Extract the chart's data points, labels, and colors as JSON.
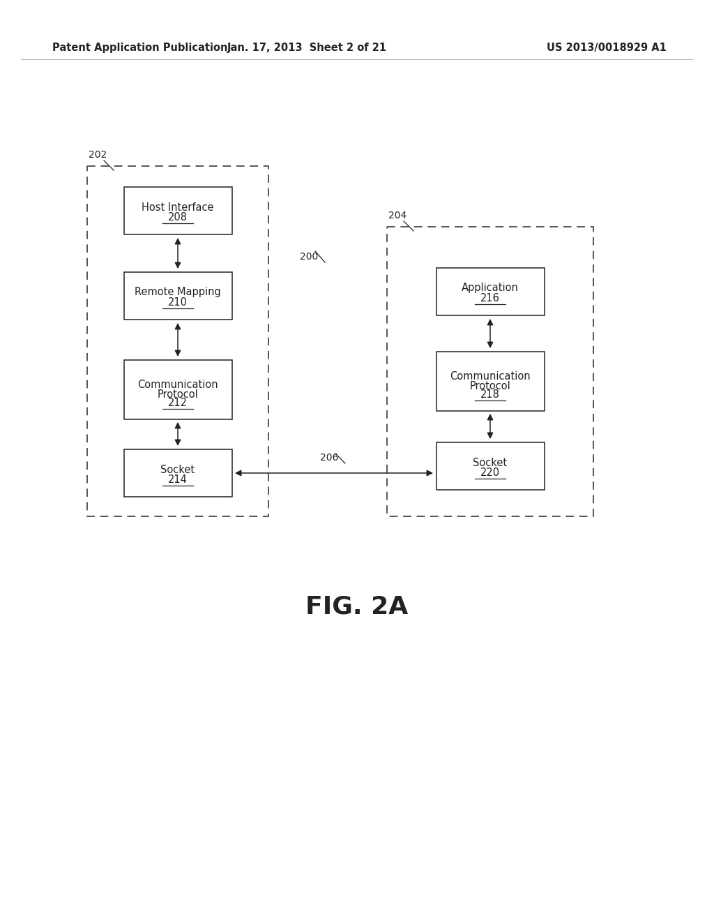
{
  "background_color": "#ffffff",
  "header_left": "Patent Application Publication",
  "header_mid": "Jan. 17, 2013  Sheet 2 of 21",
  "header_right": "US 2013/0018929 A1",
  "fig_label": "FIG. 2A",
  "label_200": "200",
  "label_202": "202",
  "label_204": "204",
  "label_206": "206",
  "text_color": "#222222",
  "box_edge_color": "#222222",
  "dashed_color": "#555555"
}
